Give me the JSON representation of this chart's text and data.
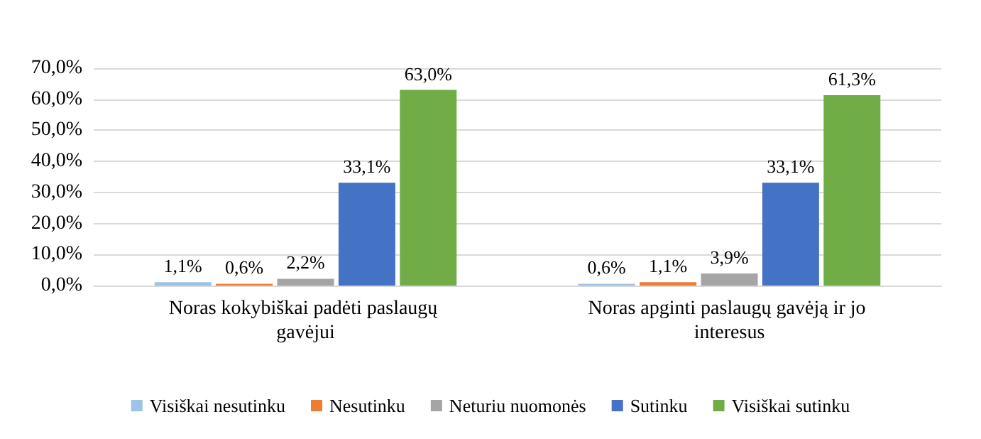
{
  "chart_data": {
    "type": "bar",
    "categories": [
      "Noras kokybiškai padėti paslaugų gavėjui",
      "Noras apginti paslaugų gavėją ir jo interesus"
    ],
    "series": [
      {
        "name": "Visiškai nesutinku",
        "color": "#9dc3e6",
        "values": [
          1.1,
          0.6
        ],
        "value_labels": [
          "1,1%",
          "0,6%"
        ]
      },
      {
        "name": "Nesutinku",
        "color": "#ed7d31",
        "values": [
          0.6,
          1.1
        ],
        "value_labels": [
          "0,6%",
          "1,1%"
        ]
      },
      {
        "name": "Neturiu nuomonės",
        "color": "#a5a5a5",
        "values": [
          2.2,
          3.9
        ],
        "value_labels": [
          "2,2%",
          "3,9%"
        ]
      },
      {
        "name": "Sutinku",
        "color": "#4472c4",
        "values": [
          33.1,
          33.1
        ],
        "value_labels": [
          "33,1%",
          "33,1%"
        ]
      },
      {
        "name": "Visiškai sutinku",
        "color": "#70ad47",
        "values": [
          63.0,
          61.3
        ],
        "value_labels": [
          "63,0%",
          "61,3%"
        ]
      }
    ],
    "ylim": [
      0,
      70
    ],
    "yticks": [
      {
        "value": 0,
        "label": "0,0%"
      },
      {
        "value": 10,
        "label": "10,0%"
      },
      {
        "value": 20,
        "label": "20,0%"
      },
      {
        "value": 30,
        "label": "30,0%"
      },
      {
        "value": 40,
        "label": "40,0%"
      },
      {
        "value": 50,
        "label": "50,0%"
      },
      {
        "value": 60,
        "label": "60,0%"
      },
      {
        "value": 70,
        "label": "70,0%"
      }
    ],
    "grid": "y",
    "legend": "bottom"
  }
}
